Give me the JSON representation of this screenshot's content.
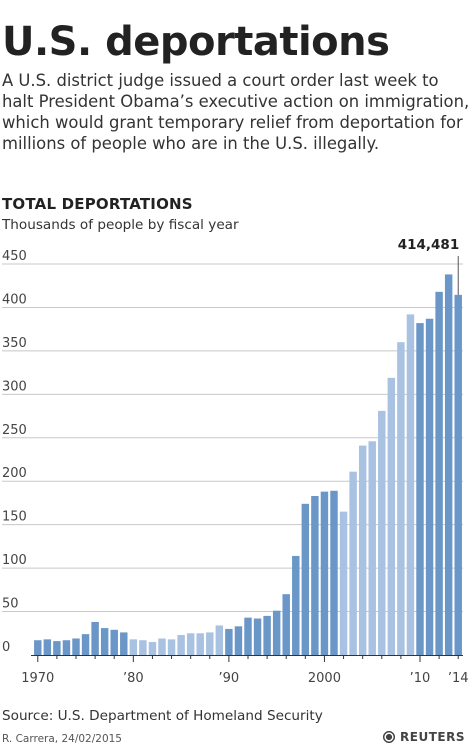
{
  "header": {
    "title": "U.S. deportations",
    "intro": "A U.S. district judge issued a court order last week to halt President Obama’s executive action on immigration, which would grant temporary relief from deportation for millions of people who are in the U.S. illegally."
  },
  "footer": {
    "source": "Source: U.S. Department of Homeland Security",
    "credit": "R. Carrera, 24/02/2015",
    "brand": "REUTERS"
  },
  "colors": {
    "dark_bar": "#6b97c8",
    "light_bar": "#a9c2e2",
    "grid": "#c8c8c8"
  },
  "chart_data": {
    "type": "bar",
    "title": "TOTAL DEPORTATIONS",
    "subtitle": "Thousands of people by fiscal year",
    "x": [
      1970,
      1971,
      1972,
      1973,
      1974,
      1975,
      1976,
      1977,
      1978,
      1979,
      1980,
      1981,
      1982,
      1983,
      1984,
      1985,
      1986,
      1987,
      1988,
      1989,
      1990,
      1991,
      1992,
      1993,
      1994,
      1995,
      1996,
      1997,
      1998,
      1999,
      2000,
      2001,
      2002,
      2003,
      2004,
      2005,
      2006,
      2007,
      2008,
      2009,
      2010,
      2011,
      2012,
      2013,
      2014
    ],
    "values": [
      17,
      18,
      16,
      17,
      19,
      24,
      38,
      31,
      29,
      26,
      18,
      17,
      15,
      19,
      18,
      23,
      25,
      25,
      26,
      34,
      30,
      33,
      43,
      42,
      45,
      51,
      70,
      114,
      174,
      183,
      188,
      189,
      165,
      211,
      241,
      246,
      281,
      319,
      360,
      392,
      382,
      387,
      418,
      438,
      414.481
    ],
    "shade": [
      "dark",
      "dark",
      "dark",
      "dark",
      "dark",
      "dark",
      "dark",
      "dark",
      "dark",
      "dark",
      "light",
      "light",
      "light",
      "light",
      "light",
      "light",
      "light",
      "light",
      "light",
      "light",
      "dark",
      "dark",
      "dark",
      "dark",
      "dark",
      "dark",
      "dark",
      "dark",
      "dark",
      "dark",
      "dark",
      "dark",
      "light",
      "light",
      "light",
      "light",
      "light",
      "light",
      "light",
      "light",
      "dark",
      "dark",
      "dark",
      "dark",
      "dark"
    ],
    "yticks": [
      0,
      50,
      100,
      150,
      200,
      250,
      300,
      350,
      400,
      450
    ],
    "ylim": [
      0,
      450
    ],
    "xtick_labels": [
      {
        "year": 1970,
        "label": "1970"
      },
      {
        "year": 1980,
        "label": "’80"
      },
      {
        "year": 1990,
        "label": "’90"
      },
      {
        "year": 2000,
        "label": "2000"
      },
      {
        "year": 2010,
        "label": "’10"
      },
      {
        "year": 2014,
        "label": "’14"
      }
    ],
    "annotation": {
      "year": 2014,
      "text": "414,481"
    },
    "grid": true,
    "legend": "none"
  }
}
